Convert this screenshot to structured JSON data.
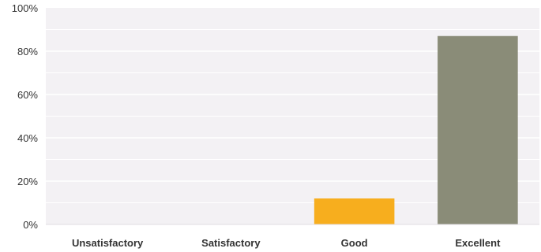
{
  "chart_data": {
    "type": "bar",
    "title": "",
    "xlabel": "",
    "ylabel": "",
    "ylim": [
      0,
      100
    ],
    "y_ticks": [
      0,
      20,
      40,
      60,
      80,
      100
    ],
    "y_tick_labels": [
      "0%",
      "20%",
      "40%",
      "60%",
      "80%",
      "100%"
    ],
    "categories": [
      "Unsatisfactory",
      "Satisfactory",
      "Good",
      "Excellent"
    ],
    "values": [
      0,
      0,
      12,
      87
    ],
    "bar_colors": [
      "#f7ae1e",
      "#f7ae1e",
      "#f7ae1e",
      "#8a8c78"
    ],
    "plot_background": "#f3f1f4",
    "grid": true,
    "grid_color": "#ffffff"
  }
}
